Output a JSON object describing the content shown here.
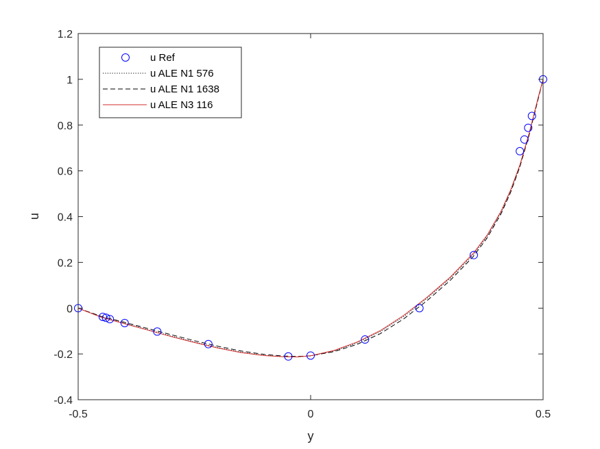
{
  "chart_data": {
    "type": "line",
    "xlabel": "y",
    "ylabel": "u",
    "xlim": [
      -0.5,
      0.5
    ],
    "ylim": [
      -0.4,
      1.2
    ],
    "xticks": [
      -0.5,
      0,
      0.5
    ],
    "xtick_labels": [
      "-0.5",
      "0",
      "0.5"
    ],
    "yticks": [
      -0.4,
      -0.2,
      0,
      0.2,
      0.4,
      0.6,
      0.8,
      1.0,
      1.2
    ],
    "ytick_labels": [
      "-0.4",
      "-0.2",
      "0",
      "0.2",
      "0.4",
      "0.6",
      "0.8",
      "1",
      "1.2"
    ],
    "grid": false,
    "legend_position": "top-left",
    "series": [
      {
        "name": "u Ref",
        "style": "markers",
        "color": "#0000ff",
        "x": [
          -0.5,
          -0.447,
          -0.44,
          -0.432,
          -0.4,
          -0.33,
          -0.22,
          -0.048,
          0.0,
          0.117,
          0.234,
          0.351,
          0.45,
          0.46,
          0.468,
          0.476,
          0.5
        ],
        "y": [
          0.0,
          -0.038,
          -0.042,
          -0.048,
          -0.065,
          -0.102,
          -0.157,
          -0.211,
          -0.207,
          -0.137,
          0.0,
          0.232,
          0.686,
          0.737,
          0.788,
          0.84,
          1.0
        ]
      },
      {
        "name": "u ALE N1 576",
        "style": "dotted",
        "color": "#000000",
        "x": [
          -0.5,
          -0.45,
          -0.4,
          -0.35,
          -0.3,
          -0.25,
          -0.2,
          -0.15,
          -0.1,
          -0.06,
          -0.03,
          0.0,
          0.05,
          0.1,
          0.15,
          0.2,
          0.25,
          0.3,
          0.35,
          0.38,
          0.41,
          0.43,
          0.45,
          0.47,
          0.49,
          0.5
        ],
        "y": [
          0.0,
          -0.038,
          -0.066,
          -0.094,
          -0.122,
          -0.148,
          -0.172,
          -0.192,
          -0.206,
          -0.212,
          -0.213,
          -0.209,
          -0.187,
          -0.152,
          -0.102,
          -0.037,
          0.042,
          0.13,
          0.234,
          0.315,
          0.42,
          0.51,
          0.62,
          0.76,
          0.92,
          1.0
        ]
      },
      {
        "name": "u ALE N1 1638",
        "style": "dashed",
        "color": "#000000",
        "x": [
          -0.5,
          -0.45,
          -0.4,
          -0.35,
          -0.3,
          -0.25,
          -0.2,
          -0.15,
          -0.1,
          -0.06,
          -0.03,
          0.0,
          0.05,
          0.1,
          0.15,
          0.2,
          0.25,
          0.3,
          0.35,
          0.38,
          0.41,
          0.43,
          0.45,
          0.47,
          0.49,
          0.5
        ],
        "y": [
          0.0,
          -0.036,
          -0.062,
          -0.089,
          -0.116,
          -0.142,
          -0.166,
          -0.187,
          -0.202,
          -0.209,
          -0.211,
          -0.208,
          -0.19,
          -0.158,
          -0.111,
          -0.047,
          0.032,
          0.121,
          0.226,
          0.308,
          0.414,
          0.505,
          0.617,
          0.757,
          0.918,
          1.0
        ]
      },
      {
        "name": "u ALE N3 116",
        "style": "solid",
        "color": "#d42a2a",
        "x": [
          -0.5,
          -0.45,
          -0.4,
          -0.35,
          -0.3,
          -0.25,
          -0.2,
          -0.15,
          -0.1,
          -0.06,
          -0.03,
          0.0,
          0.05,
          0.1,
          0.15,
          0.2,
          0.25,
          0.3,
          0.35,
          0.38,
          0.41,
          0.43,
          0.45,
          0.47,
          0.49,
          0.5
        ],
        "y": [
          0.0,
          -0.04,
          -0.068,
          -0.096,
          -0.124,
          -0.15,
          -0.174,
          -0.194,
          -0.207,
          -0.212,
          -0.213,
          -0.208,
          -0.185,
          -0.148,
          -0.098,
          -0.032,
          0.047,
          0.135,
          0.24,
          0.32,
          0.425,
          0.515,
          0.625,
          0.765,
          0.925,
          1.0
        ]
      }
    ]
  }
}
